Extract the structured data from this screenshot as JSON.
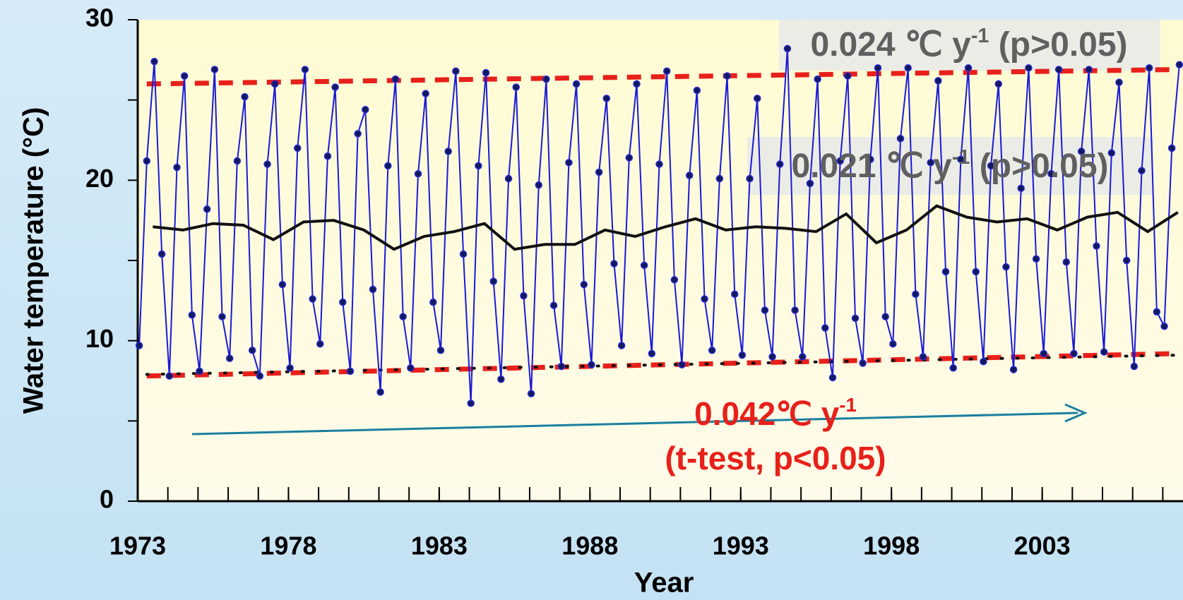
{
  "chart_data": {
    "type": "line",
    "xlabel": "Year",
    "ylabel": "Water temperature (°C)",
    "xlim": [
      1973,
      2007.6
    ],
    "ylim": [
      0,
      30
    ],
    "xticks": [
      1973,
      1978,
      1983,
      1988,
      1993,
      1998,
      2003
    ],
    "xminorticks": [
      1974,
      1975,
      1976,
      1977,
      1978,
      1979,
      1980,
      1981,
      1982,
      1983,
      1984,
      1985,
      1986,
      1987,
      1988,
      1989,
      1990,
      1991,
      1992,
      1993,
      1994,
      1995,
      1996,
      1997,
      1998,
      1999,
      2000,
      2001,
      2002,
      2003,
      2004,
      2005,
      2006,
      2007
    ],
    "yticks": [
      0,
      10,
      20,
      30
    ],
    "yminorticks": [
      5,
      15,
      25
    ],
    "annotations": [
      {
        "text": "0.024 ℃ y",
        "sup": "-1",
        "tail": " (p>0.05)"
      },
      {
        "text": "0.021 ℃ y",
        "sup": "-1",
        "tail": " (p>0.05)"
      },
      {
        "text": "0.042℃ y",
        "sup": "-1",
        "line2": "(t-test, p<0.05)"
      }
    ],
    "series": [
      {
        "color": "#1a1ad6",
        "style": "markers",
        "x": [
          1973.05,
          1973.3,
          1973.55,
          1973.8,
          1974.05,
          1974.3,
          1974.55,
          1974.8,
          1975.05,
          1975.3,
          1975.55,
          1975.8,
          1976.05,
          1976.3,
          1976.55,
          1976.8,
          1977.05,
          1977.3,
          1977.55,
          1977.8,
          1978.05,
          1978.3,
          1978.55,
          1978.8,
          1979.05,
          1979.3,
          1979.55,
          1979.8,
          1980.05,
          1980.3,
          1980.55,
          1980.8,
          1981.05,
          1981.3,
          1981.55,
          1981.8,
          1982.05,
          1982.3,
          1982.55,
          1982.8,
          1983.05,
          1983.3,
          1983.55,
          1983.8,
          1984.05,
          1984.3,
          1984.55,
          1984.8,
          1985.05,
          1985.3,
          1985.55,
          1985.8,
          1986.05,
          1986.3,
          1986.55,
          1986.8,
          1987.05,
          1987.3,
          1987.55,
          1987.8,
          1988.05,
          1988.3,
          1988.55,
          1988.8,
          1989.05,
          1989.3,
          1989.55,
          1989.8,
          1990.05,
          1990.3,
          1990.55,
          1990.8,
          1991.05,
          1991.3,
          1991.55,
          1991.8,
          1992.05,
          1992.3,
          1992.55,
          1992.8,
          1993.05,
          1993.3,
          1993.55,
          1993.8,
          1994.05,
          1994.3,
          1994.55,
          1994.8,
          1995.05,
          1995.3,
          1995.55,
          1995.8,
          1996.05,
          1996.3,
          1996.55,
          1996.8,
          1997.05,
          1997.3,
          1997.55,
          1997.8,
          1998.05,
          1998.3,
          1998.55,
          1998.8,
          1999.05,
          1999.3,
          1999.55,
          1999.8,
          2000.05,
          2000.3,
          2000.55,
          2000.8,
          2001.05,
          2001.3,
          2001.55,
          2001.8,
          2002.05,
          2002.3,
          2002.55,
          2002.8,
          2003.05,
          2003.3,
          2003.55,
          2003.8,
          2004.05,
          2004.3,
          2004.55,
          2004.8,
          2005.05,
          2005.3,
          2005.55,
          2005.8,
          2006.05,
          2006.3,
          2006.55,
          2006.8,
          2007.05,
          2007.3,
          2007.55
        ],
        "values": [
          9.7,
          21.2,
          27.4,
          15.4,
          7.8,
          20.8,
          26.5,
          11.6,
          8.1,
          18.2,
          26.9,
          11.5,
          8.9,
          21.2,
          25.2,
          9.4,
          7.8,
          21.0,
          26.0,
          13.5,
          8.3,
          22.0,
          26.9,
          12.6,
          9.8,
          21.5,
          25.8,
          12.4,
          8.1,
          22.9,
          24.4,
          13.2,
          6.8,
          20.9,
          26.3,
          11.5,
          8.3,
          20.4,
          25.4,
          12.4,
          9.4,
          21.8,
          26.8,
          15.4,
          6.1,
          20.9,
          26.7,
          13.7,
          7.6,
          20.1,
          25.8,
          12.8,
          6.7,
          19.7,
          26.3,
          12.2,
          8.4,
          21.1,
          26.0,
          13.5,
          8.5,
          20.5,
          25.1,
          14.8,
          9.7,
          21.4,
          26.0,
          14.7,
          9.2,
          21.0,
          26.8,
          13.8,
          8.5,
          20.3,
          25.6,
          12.6,
          9.4,
          20.1,
          26.5,
          12.9,
          9.1,
          20.1,
          25.1,
          11.9,
          9.0,
          21.0,
          28.2,
          11.9,
          9.0,
          19.8,
          26.3,
          10.8,
          7.7,
          21.2,
          26.5,
          11.4,
          8.6,
          21.3,
          27.0,
          11.5,
          9.8,
          22.6,
          27.0,
          12.9,
          9.0,
          21.1,
          26.2,
          14.3,
          8.3,
          21.3,
          27.0,
          14.3,
          8.7,
          20.9,
          26.0,
          14.6,
          8.2,
          19.5,
          27.0,
          15.1,
          9.2,
          20.4,
          26.9,
          14.9,
          9.2,
          21.8,
          26.9,
          15.9,
          9.3,
          21.7,
          26.1,
          15.0,
          8.4,
          20.6,
          27.0,
          11.8,
          10.9,
          22.0,
          27.2
        ]
      },
      {
        "color": "#111111",
        "style": "solid",
        "x": [
          1973.5,
          1974.5,
          1975.5,
          1976.5,
          1977.5,
          1978.5,
          1979.5,
          1980.5,
          1981.5,
          1982.5,
          1983.5,
          1984.5,
          1985.5,
          1986.5,
          1987.5,
          1988.5,
          1989.5,
          1990.5,
          1991.5,
          1992.5,
          1993.5,
          1994.5,
          1995.5,
          1996.5,
          1997.5,
          1998.5,
          1999.5,
          2000.5,
          2001.5,
          2002.5,
          2003.5,
          2004.5,
          2005.5,
          2006.5,
          2007.5
        ],
        "values": [
          17.1,
          16.9,
          17.3,
          17.2,
          16.3,
          17.4,
          17.5,
          16.9,
          15.7,
          16.5,
          16.8,
          17.3,
          15.7,
          16.0,
          16.0,
          16.9,
          16.5,
          17.1,
          17.6,
          16.9,
          17.1,
          17.0,
          16.8,
          17.9,
          16.1,
          16.9,
          18.4,
          17.7,
          17.4,
          17.6,
          16.9,
          17.7,
          18.0,
          16.8,
          18.0
        ]
      },
      {
        "color": "#111111",
        "style": "dotted",
        "x": [
          1973.3,
          2007.5
        ],
        "values": [
          7.9,
          9.1
        ]
      },
      {
        "color": "#e8201a",
        "style": "dashed",
        "x": [
          1973.3,
          2007.5
        ],
        "values": [
          26.0,
          26.9
        ]
      },
      {
        "color": "#e8201a",
        "style": "dashed",
        "x": [
          1973.3,
          2007.5
        ],
        "values": [
          7.8,
          9.2
        ]
      }
    ]
  }
}
